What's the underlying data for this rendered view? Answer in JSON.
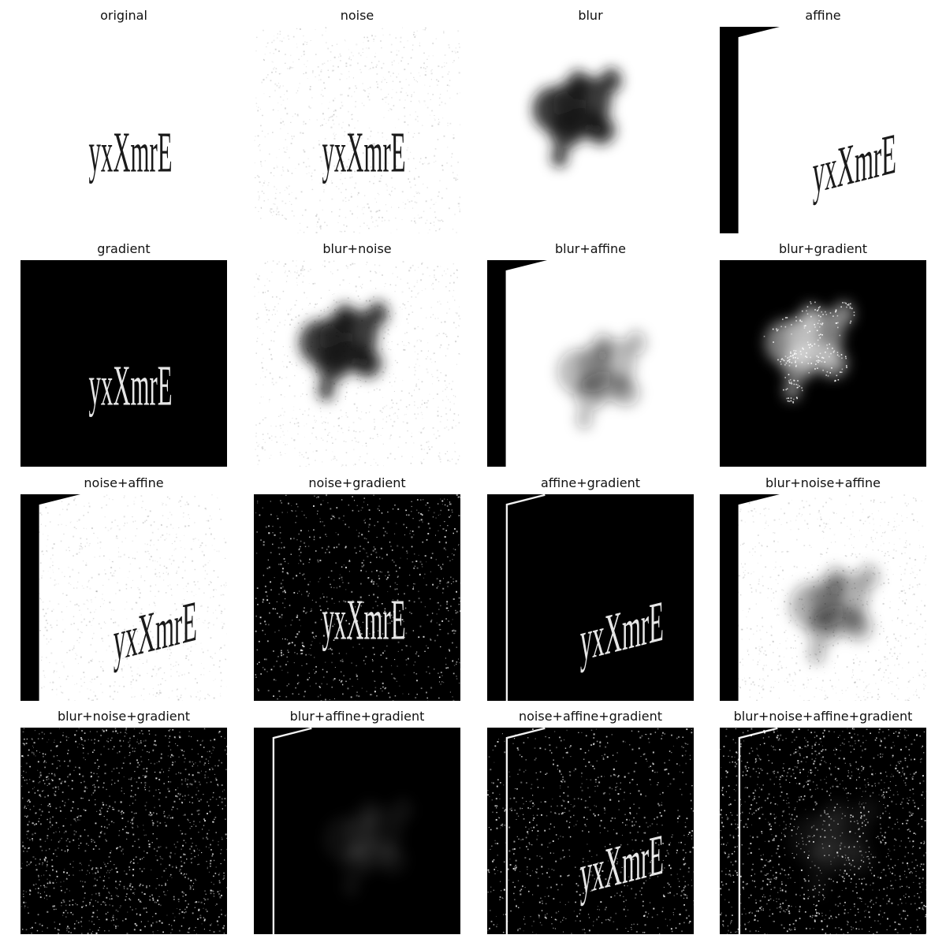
{
  "word": "yxXmrE",
  "panels": [
    {
      "title": "original",
      "blur": false,
      "noise": false,
      "affine": false,
      "gradient": false
    },
    {
      "title": "noise",
      "blur": false,
      "noise": true,
      "affine": false,
      "gradient": false
    },
    {
      "title": "blur",
      "blur": true,
      "noise": false,
      "affine": false,
      "gradient": false
    },
    {
      "title": "affine",
      "blur": false,
      "noise": false,
      "affine": true,
      "gradient": false
    },
    {
      "title": "gradient",
      "blur": false,
      "noise": false,
      "affine": false,
      "gradient": true
    },
    {
      "title": "blur+noise",
      "blur": true,
      "noise": true,
      "affine": false,
      "gradient": false
    },
    {
      "title": "blur+affine",
      "blur": true,
      "noise": false,
      "affine": true,
      "gradient": false
    },
    {
      "title": "blur+gradient",
      "blur": true,
      "noise": false,
      "affine": false,
      "gradient": true
    },
    {
      "title": "noise+affine",
      "blur": false,
      "noise": true,
      "affine": true,
      "gradient": false
    },
    {
      "title": "noise+gradient",
      "blur": false,
      "noise": true,
      "affine": false,
      "gradient": true
    },
    {
      "title": "affine+gradient",
      "blur": false,
      "noise": false,
      "affine": true,
      "gradient": true
    },
    {
      "title": "blur+noise+affine",
      "blur": true,
      "noise": true,
      "affine": true,
      "gradient": false
    },
    {
      "title": "blur+noise+gradient",
      "blur": true,
      "noise": true,
      "affine": false,
      "gradient": true
    },
    {
      "title": "blur+affine+gradient",
      "blur": true,
      "noise": false,
      "affine": true,
      "gradient": true
    },
    {
      "title": "noise+affine+gradient",
      "blur": false,
      "noise": true,
      "affine": true,
      "gradient": true
    },
    {
      "title": "blur+noise+affine+gradient",
      "blur": true,
      "noise": true,
      "affine": true,
      "gradient": true
    }
  ]
}
